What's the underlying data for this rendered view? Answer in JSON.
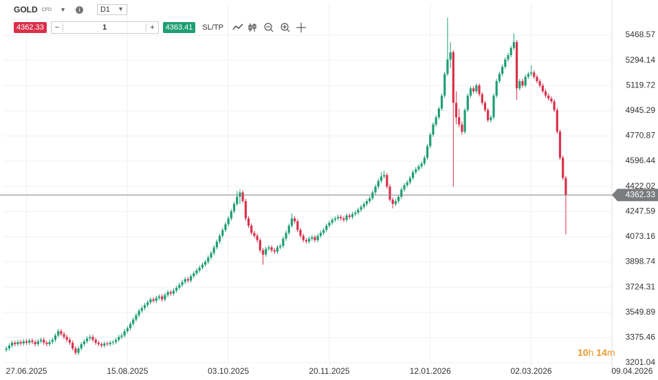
{
  "toolbar": {
    "symbol": "GOLD",
    "symbol_type": "CFD",
    "timeframe": "D1",
    "sell_price": "4362.33",
    "quantity": "1",
    "buy_price": "4363.41",
    "sl_tp": "SL/TP"
  },
  "countdown": {
    "hours": "10",
    "hours_unit": "h",
    "minutes": "14",
    "minutes_unit": "m"
  },
  "chart_data": {
    "type": "candlestick",
    "up_color": "#1e9e74",
    "down_color": "#d9304a",
    "grid": true,
    "last_price": 4362.33,
    "last_price_color": "#7a7d80",
    "xlim": [
      -1,
      210
    ],
    "xticks": [
      {
        "value": 7,
        "label": "27.06.2025"
      },
      {
        "value": 42,
        "label": "15.08.2025"
      },
      {
        "value": 77,
        "label": "03.10.2025"
      },
      {
        "value": 112,
        "label": "20.11.2025"
      },
      {
        "value": 147,
        "label": "12.01.2026"
      },
      {
        "value": 182,
        "label": "02.03.2026"
      },
      {
        "value": 217,
        "label": "09.04.2026"
      }
    ],
    "ylim": [
      3139.1,
      5687.7
    ],
    "yticks": [
      3201.04,
      3375.46,
      3549.89,
      3724.31,
      3898.74,
      4073.16,
      4247.59,
      4422.02,
      4596.44,
      4770.87,
      4945.29,
      5119.72,
      5294.14,
      5468.57
    ],
    "x": [
      0,
      1,
      2,
      3,
      4,
      5,
      6,
      7,
      8,
      9,
      10,
      11,
      12,
      13,
      14,
      15,
      16,
      17,
      18,
      19,
      20,
      21,
      22,
      23,
      24,
      25,
      26,
      27,
      28,
      29,
      30,
      31,
      32,
      33,
      34,
      35,
      36,
      37,
      38,
      39,
      40,
      41,
      42,
      43,
      44,
      45,
      46,
      47,
      48,
      49,
      50,
      51,
      52,
      53,
      54,
      55,
      56,
      57,
      58,
      59,
      60,
      61,
      62,
      63,
      64,
      65,
      66,
      67,
      68,
      69,
      70,
      71,
      72,
      73,
      74,
      75,
      76,
      77,
      78,
      79,
      80,
      81,
      82,
      83,
      84,
      85,
      86,
      87,
      88,
      89,
      90,
      91,
      92,
      93,
      94,
      95,
      96,
      97,
      98,
      99,
      100,
      101,
      102,
      103,
      104,
      105,
      106,
      107,
      108,
      109,
      110,
      111,
      112,
      113,
      114,
      115,
      116,
      117,
      118,
      119,
      120,
      121,
      122,
      123,
      124,
      125,
      126,
      127,
      128,
      129,
      130,
      131,
      132,
      133,
      134,
      135,
      136,
      137,
      138,
      139,
      140,
      141,
      142,
      143,
      144,
      145,
      146,
      147,
      148,
      149,
      150,
      151,
      152,
      153,
      154,
      155,
      156,
      157,
      158,
      159,
      160,
      161,
      162,
      163,
      164,
      165,
      166,
      167,
      168,
      169,
      170,
      171,
      172,
      173,
      174,
      175,
      176,
      177,
      178,
      179,
      180,
      181,
      182,
      183,
      184,
      185,
      186,
      187,
      188,
      189,
      190,
      191,
      192,
      193,
      194
    ],
    "ohlc": [
      [
        3290,
        3315,
        3275,
        3300
      ],
      [
        3300,
        3335,
        3285,
        3320
      ],
      [
        3320,
        3355,
        3305,
        3340
      ],
      [
        3340,
        3355,
        3315,
        3330
      ],
      [
        3330,
        3360,
        3315,
        3345
      ],
      [
        3345,
        3360,
        3320,
        3335
      ],
      [
        3335,
        3365,
        3320,
        3350
      ],
      [
        3350,
        3365,
        3325,
        3340
      ],
      [
        3340,
        3370,
        3325,
        3355
      ],
      [
        3355,
        3370,
        3330,
        3345
      ],
      [
        3345,
        3360,
        3315,
        3330
      ],
      [
        3330,
        3365,
        3315,
        3350
      ],
      [
        3350,
        3375,
        3335,
        3360
      ],
      [
        3360,
        3375,
        3325,
        3340
      ],
      [
        3340,
        3355,
        3315,
        3330
      ],
      [
        3330,
        3360,
        3315,
        3345
      ],
      [
        3345,
        3375,
        3330,
        3360
      ],
      [
        3360,
        3405,
        3345,
        3390
      ],
      [
        3390,
        3435,
        3375,
        3420
      ],
      [
        3420,
        3435,
        3385,
        3400
      ],
      [
        3400,
        3415,
        3365,
        3380
      ],
      [
        3380,
        3395,
        3345,
        3360
      ],
      [
        3360,
        3375,
        3325,
        3340
      ],
      [
        3340,
        3355,
        3285,
        3300
      ],
      [
        3300,
        3315,
        3255,
        3270
      ],
      [
        3270,
        3315,
        3255,
        3300
      ],
      [
        3300,
        3345,
        3285,
        3330
      ],
      [
        3330,
        3365,
        3315,
        3350
      ],
      [
        3350,
        3385,
        3335,
        3370
      ],
      [
        3370,
        3395,
        3355,
        3380
      ],
      [
        3380,
        3395,
        3345,
        3360
      ],
      [
        3360,
        3375,
        3325,
        3340
      ],
      [
        3340,
        3355,
        3315,
        3330
      ],
      [
        3330,
        3345,
        3305,
        3320
      ],
      [
        3320,
        3350,
        3305,
        3335
      ],
      [
        3335,
        3350,
        3315,
        3330
      ],
      [
        3330,
        3355,
        3315,
        3340
      ],
      [
        3340,
        3360,
        3325,
        3345
      ],
      [
        3345,
        3375,
        3330,
        3360
      ],
      [
        3360,
        3395,
        3345,
        3380
      ],
      [
        3380,
        3405,
        3365,
        3390
      ],
      [
        3390,
        3435,
        3375,
        3420
      ],
      [
        3420,
        3455,
        3405,
        3440
      ],
      [
        3440,
        3485,
        3425,
        3470
      ],
      [
        3470,
        3515,
        3455,
        3500
      ],
      [
        3500,
        3545,
        3485,
        3530
      ],
      [
        3530,
        3575,
        3515,
        3560
      ],
      [
        3560,
        3595,
        3545,
        3580
      ],
      [
        3580,
        3615,
        3565,
        3600
      ],
      [
        3600,
        3635,
        3585,
        3620
      ],
      [
        3620,
        3655,
        3605,
        3640
      ],
      [
        3640,
        3655,
        3615,
        3630
      ],
      [
        3630,
        3665,
        3615,
        3650
      ],
      [
        3650,
        3675,
        3635,
        3660
      ],
      [
        3660,
        3675,
        3625,
        3640
      ],
      [
        3640,
        3685,
        3625,
        3670
      ],
      [
        3670,
        3705,
        3655,
        3690
      ],
      [
        3690,
        3705,
        3665,
        3680
      ],
      [
        3680,
        3715,
        3665,
        3700
      ],
      [
        3700,
        3735,
        3685,
        3720
      ],
      [
        3720,
        3755,
        3705,
        3740
      ],
      [
        3740,
        3775,
        3725,
        3760
      ],
      [
        3760,
        3795,
        3745,
        3780
      ],
      [
        3780,
        3795,
        3755,
        3770
      ],
      [
        3770,
        3815,
        3755,
        3800
      ],
      [
        3800,
        3835,
        3785,
        3820
      ],
      [
        3820,
        3855,
        3805,
        3840
      ],
      [
        3840,
        3875,
        3825,
        3860
      ],
      [
        3860,
        3895,
        3845,
        3880
      ],
      [
        3880,
        3915,
        3865,
        3900
      ],
      [
        3900,
        3945,
        3885,
        3930
      ],
      [
        3930,
        3975,
        3915,
        3960
      ],
      [
        3960,
        4015,
        3945,
        4000
      ],
      [
        4000,
        4055,
        3985,
        4040
      ],
      [
        4040,
        4095,
        4025,
        4080
      ],
      [
        4080,
        4135,
        4065,
        4120
      ],
      [
        4120,
        4175,
        4105,
        4160
      ],
      [
        4160,
        4215,
        4145,
        4200
      ],
      [
        4200,
        4265,
        4185,
        4250
      ],
      [
        4250,
        4315,
        4235,
        4300
      ],
      [
        4300,
        4390,
        4285,
        4350
      ],
      [
        4350,
        4400,
        4300,
        4380
      ],
      [
        4380,
        4395,
        4305,
        4320
      ],
      [
        4320,
        4335,
        4185,
        4200
      ],
      [
        4200,
        4215,
        4135,
        4150
      ],
      [
        4150,
        4165,
        4085,
        4100
      ],
      [
        4100,
        4115,
        4065,
        4080
      ],
      [
        4080,
        4095,
        4035,
        4050
      ],
      [
        4050,
        4065,
        3965,
        3980
      ],
      [
        3980,
        3995,
        3880,
        3950
      ],
      [
        3950,
        4005,
        3935,
        3990
      ],
      [
        3990,
        4015,
        3975,
        4000
      ],
      [
        4000,
        4015,
        3965,
        3980
      ],
      [
        3980,
        3995,
        3955,
        3970
      ],
      [
        3970,
        4015,
        3955,
        4000
      ],
      [
        4000,
        4025,
        3985,
        4010
      ],
      [
        4010,
        4075,
        3995,
        4060
      ],
      [
        4060,
        4115,
        4045,
        4100
      ],
      [
        4100,
        4165,
        4085,
        4150
      ],
      [
        4150,
        4235,
        4135,
        4200
      ],
      [
        4200,
        4215,
        4165,
        4180
      ],
      [
        4180,
        4195,
        4105,
        4120
      ],
      [
        4120,
        4135,
        4065,
        4080
      ],
      [
        4080,
        4095,
        4035,
        4050
      ],
      [
        4050,
        4065,
        4025,
        4040
      ],
      [
        4040,
        4075,
        4025,
        4060
      ],
      [
        4060,
        4085,
        4045,
        4070
      ],
      [
        4070,
        4085,
        4035,
        4050
      ],
      [
        4050,
        4095,
        4035,
        4080
      ],
      [
        4080,
        4115,
        4065,
        4100
      ],
      [
        4100,
        4135,
        4085,
        4120
      ],
      [
        4120,
        4165,
        4105,
        4150
      ],
      [
        4150,
        4185,
        4135,
        4170
      ],
      [
        4170,
        4205,
        4155,
        4190
      ],
      [
        4190,
        4215,
        4175,
        4200
      ],
      [
        4200,
        4225,
        4185,
        4210
      ],
      [
        4210,
        4225,
        4185,
        4200
      ],
      [
        4200,
        4215,
        4175,
        4190
      ],
      [
        4190,
        4235,
        4175,
        4220
      ],
      [
        4220,
        4235,
        4195,
        4210
      ],
      [
        4210,
        4245,
        4195,
        4230
      ],
      [
        4230,
        4255,
        4215,
        4240
      ],
      [
        4240,
        4275,
        4225,
        4260
      ],
      [
        4260,
        4295,
        4245,
        4280
      ],
      [
        4280,
        4315,
        4265,
        4300
      ],
      [
        4300,
        4335,
        4285,
        4320
      ],
      [
        4320,
        4355,
        4305,
        4340
      ],
      [
        4340,
        4395,
        4325,
        4380
      ],
      [
        4380,
        4435,
        4365,
        4420
      ],
      [
        4420,
        4475,
        4405,
        4460
      ],
      [
        4460,
        4520,
        4445,
        4490
      ],
      [
        4490,
        4530,
        4475,
        4500
      ],
      [
        4500,
        4515,
        4405,
        4420
      ],
      [
        4420,
        4435,
        4315,
        4330
      ],
      [
        4330,
        4345,
        4270,
        4300
      ],
      [
        4300,
        4335,
        4285,
        4320
      ],
      [
        4320,
        4365,
        4305,
        4350
      ],
      [
        4350,
        4415,
        4335,
        4400
      ],
      [
        4400,
        4445,
        4385,
        4430
      ],
      [
        4430,
        4465,
        4415,
        4450
      ],
      [
        4450,
        4495,
        4435,
        4480
      ],
      [
        4480,
        4535,
        4465,
        4520
      ],
      [
        4520,
        4555,
        4505,
        4540
      ],
      [
        4540,
        4575,
        4525,
        4560
      ],
      [
        4560,
        4595,
        4545,
        4580
      ],
      [
        4580,
        4635,
        4565,
        4620
      ],
      [
        4620,
        4715,
        4605,
        4700
      ],
      [
        4700,
        4795,
        4685,
        4780
      ],
      [
        4780,
        4865,
        4765,
        4850
      ],
      [
        4850,
        4915,
        4835,
        4900
      ],
      [
        4900,
        4975,
        4885,
        4960
      ],
      [
        4960,
        5065,
        4945,
        5050
      ],
      [
        5050,
        5215,
        5035,
        5200
      ],
      [
        5200,
        5590,
        5185,
        5300
      ],
      [
        5300,
        5420,
        5240,
        5350
      ],
      [
        5350,
        5365,
        4420,
        5000
      ],
      [
        5000,
        5080,
        4850,
        4900
      ],
      [
        4900,
        4960,
        4830,
        4850
      ],
      [
        4850,
        4870,
        4780,
        4800
      ],
      [
        4800,
        4965,
        4785,
        4950
      ],
      [
        4950,
        5065,
        4935,
        5050
      ],
      [
        5050,
        5115,
        5035,
        5100
      ],
      [
        5100,
        5115,
        5065,
        5080
      ],
      [
        5080,
        5135,
        5065,
        5120
      ],
      [
        5120,
        5135,
        5045,
        5060
      ],
      [
        5060,
        5075,
        4985,
        5000
      ],
      [
        5000,
        5015,
        4935,
        4950
      ],
      [
        4950,
        4965,
        4865,
        4880
      ],
      [
        4880,
        4915,
        4865,
        4900
      ],
      [
        4900,
        5065,
        4885,
        5050
      ],
      [
        5050,
        5165,
        5035,
        5150
      ],
      [
        5150,
        5215,
        5135,
        5200
      ],
      [
        5200,
        5265,
        5185,
        5250
      ],
      [
        5250,
        5315,
        5235,
        5300
      ],
      [
        5300,
        5345,
        5285,
        5330
      ],
      [
        5330,
        5395,
        5315,
        5380
      ],
      [
        5380,
        5480,
        5365,
        5420
      ],
      [
        5420,
        5435,
        5020,
        5100
      ],
      [
        5100,
        5165,
        5085,
        5150
      ],
      [
        5150,
        5165,
        5105,
        5120
      ],
      [
        5120,
        5195,
        5105,
        5180
      ],
      [
        5180,
        5215,
        5165,
        5200
      ],
      [
        5200,
        5260,
        5185,
        5210
      ],
      [
        5210,
        5225,
        5165,
        5180
      ],
      [
        5180,
        5195,
        5135,
        5150
      ],
      [
        5150,
        5165,
        5105,
        5120
      ],
      [
        5120,
        5135,
        5065,
        5080
      ],
      [
        5080,
        5095,
        5035,
        5050
      ],
      [
        5050,
        5065,
        5015,
        5030
      ],
      [
        5030,
        5045,
        4995,
        5010
      ],
      [
        5010,
        5025,
        4935,
        4950
      ],
      [
        4950,
        4965,
        4785,
        4800
      ],
      [
        4800,
        4815,
        4605,
        4620
      ],
      [
        4620,
        4635,
        4465,
        4480
      ],
      [
        4480,
        4495,
        4090,
        4362.33
      ]
    ]
  }
}
